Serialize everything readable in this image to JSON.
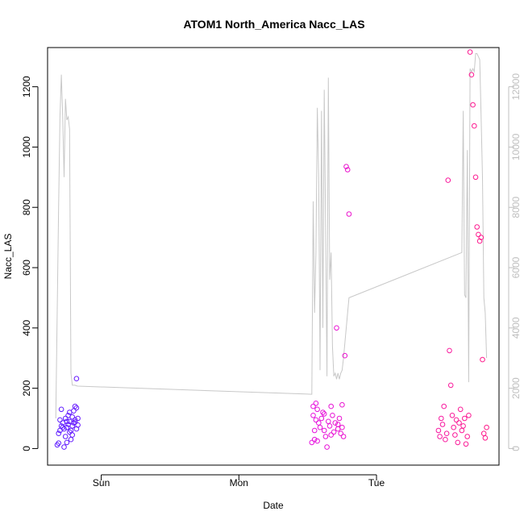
{
  "chart_data": {
    "type": "scatter",
    "title": "ATOM1 North_America Nacc_LAS",
    "xlabel": "Date",
    "ylabel": "Nacc_LAS",
    "x_ticks": [
      "Sun",
      "Mon",
      "Tue"
    ],
    "x_tick_values": [
      0,
      1,
      2
    ],
    "y_ticks": [
      "0",
      "200",
      "400",
      "600",
      "800",
      "1000",
      "1200"
    ],
    "y_tick_values": [
      0,
      200,
      400,
      600,
      800,
      1000,
      1200
    ],
    "ylim": [
      -55,
      1330
    ],
    "y2_ticks": [
      "0",
      "2000",
      "4000",
      "6000",
      "8000",
      "10000",
      "12000"
    ],
    "y2_tick_values": [
      0,
      2000,
      4000,
      6000,
      8000,
      10000,
      12000
    ],
    "y2lim": [
      -550,
      13300
    ],
    "xlim": [
      -0.39,
      2.89
    ],
    "grid": false,
    "colors": {
      "point_start": "#5a1cff",
      "point_mid": "#e011f2",
      "point_end": "#ff1a86",
      "line": "#c8c8c8",
      "right_axis": "#bfbfbf",
      "axis": "#000000"
    },
    "series": [
      {
        "role": "points",
        "clusters": [
          {
            "x": [
              -0.32,
              -0.31,
              -0.31,
              -0.3,
              -0.29,
              -0.29,
              -0.28,
              -0.27,
              -0.26,
              -0.26,
              -0.25,
              -0.25,
              -0.24,
              -0.24,
              -0.23,
              -0.23,
              -0.22,
              -0.22,
              -0.21,
              -0.21,
              -0.2,
              -0.2,
              -0.19,
              -0.19,
              -0.18,
              -0.18,
              -0.17,
              -0.17,
              -0.3,
              -0.28,
              -0.27,
              -0.25,
              -0.23,
              -0.21,
              -0.19,
              -0.18
            ],
            "y": [
              12,
              18,
              50,
              95,
              130,
              75,
              85,
              65,
              40,
              100,
              70,
              20,
              110,
              80,
              55,
              90,
              60,
              30,
              105,
              75,
              125,
              85,
              140,
              95,
              232,
              65,
              100,
              78,
              60,
              70,
              5,
              90,
              120,
              45,
              88,
              135
            ]
          },
          {
            "x": [
              1.53,
              1.54,
              1.54,
              1.55,
              1.55,
              1.56,
              1.56,
              1.57,
              1.58,
              1.59,
              1.6,
              1.61,
              1.62,
              1.63,
              1.64,
              1.65,
              1.66,
              1.67,
              1.68,
              1.69,
              1.7,
              1.71,
              1.72,
              1.73,
              1.74,
              1.75,
              1.76,
              1.77,
              1.78,
              1.79,
              1.8,
              1.57,
              1.62,
              1.67,
              1.72,
              1.75
            ],
            "y": [
              20,
              140,
              110,
              60,
              30,
              95,
              150,
              130,
              85,
              70,
              100,
              120,
              60,
              40,
              5,
              90,
              75,
              140,
              110,
              55,
              85,
              400,
              65,
              100,
              50,
              70,
              40,
              308,
              935,
              925,
              778,
              25,
              115,
              45,
              80,
              145
            ]
          },
          {
            "x": [
              2.45,
              2.46,
              2.47,
              2.48,
              2.49,
              2.5,
              2.51,
              2.52,
              2.53,
              2.54,
              2.55,
              2.56,
              2.57,
              2.58,
              2.59,
              2.6,
              2.61,
              2.62,
              2.63,
              2.64,
              2.65,
              2.66,
              2.67,
              2.68,
              2.69,
              2.7,
              2.71,
              2.72,
              2.73,
              2.74,
              2.75,
              2.76,
              2.77,
              2.78,
              2.79,
              2.8
            ],
            "y": [
              60,
              40,
              100,
              80,
              140,
              30,
              50,
              890,
              325,
              210,
              110,
              70,
              45,
              95,
              20,
              85,
              130,
              60,
              75,
              100,
              15,
              40,
              110,
              1315,
              1240,
              1140,
              1070,
              900,
              735,
              710,
              688,
              700,
              295,
              50,
              35,
              70
            ]
          }
        ]
      },
      {
        "role": "line",
        "axis": "right",
        "x": [
          -0.33,
          -0.31,
          -0.3,
          -0.29,
          -0.28,
          -0.27,
          -0.26,
          -0.25,
          -0.24,
          -0.23,
          -0.22,
          -0.21,
          -0.2,
          -0.19,
          -0.18,
          -0.17,
          1.53,
          1.54,
          1.55,
          1.56,
          1.57,
          1.58,
          1.59,
          1.6,
          1.61,
          1.62,
          1.63,
          1.64,
          1.65,
          1.66,
          1.67,
          1.68,
          1.69,
          1.7,
          1.71,
          1.72,
          1.73,
          1.74,
          1.75,
          1.76,
          1.77,
          1.78,
          1.79,
          1.8,
          2.62,
          2.63,
          2.64,
          2.65,
          2.66,
          2.67,
          2.68,
          2.69,
          2.7,
          2.71,
          2.72,
          2.73,
          2.74,
          2.75,
          2.76,
          2.77,
          2.78,
          2.79,
          2.8
        ],
        "y": [
          1000,
          8000,
          11000,
          12400,
          11000,
          9000,
          11600,
          10900,
          11000,
          10600,
          2500,
          2100,
          2100,
          2100,
          2080,
          2070,
          1800,
          8200,
          4500,
          6500,
          11300,
          9000,
          2600,
          11200,
          4000,
          11900,
          7300,
          2400,
          12300,
          5600,
          6500,
          3400,
          2400,
          2500,
          2300,
          2500,
          2300,
          2500,
          2600,
          3000,
          3500,
          4000,
          4500,
          5000,
          6500,
          11200,
          5100,
          5000,
          9900,
          2200,
          12600,
          12500,
          12600,
          12500,
          13100,
          13100,
          13000,
          12900,
          11000,
          9000,
          5000,
          4500,
          3000
        ]
      }
    ]
  }
}
